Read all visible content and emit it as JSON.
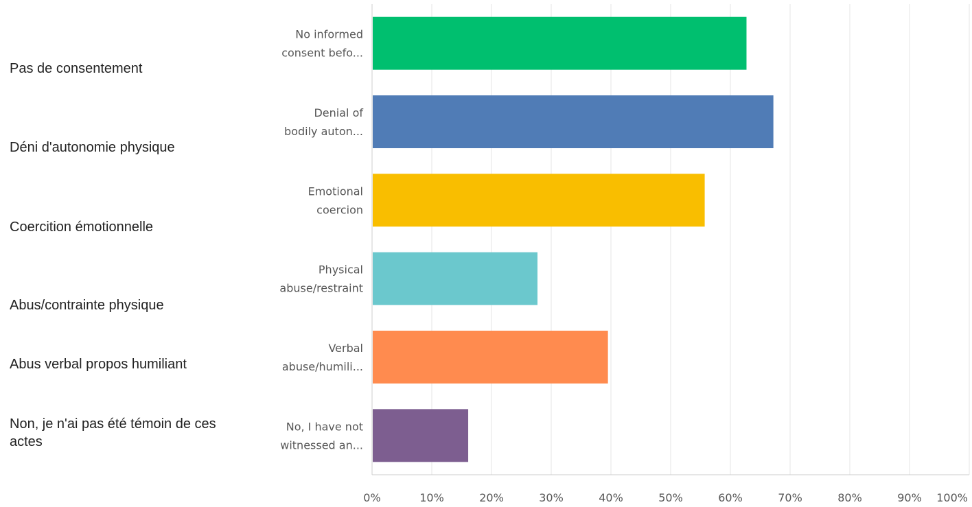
{
  "side_labels": [
    "Pas de consentement",
    "Déni d'autonomie physique",
    "Coercition émotionnelle",
    "Abus/contrainte physique",
    "Abus verbal propos humiliant",
    "Non, je n'ai pas été témoin de ces actes"
  ],
  "chart_data": {
    "type": "bar",
    "orientation": "horizontal",
    "categories": [
      [
        "No informed",
        "consent befo..."
      ],
      [
        "Denial of",
        "bodily auton..."
      ],
      [
        "Emotional",
        "coercion"
      ],
      [
        "Physical",
        "abuse/restraint"
      ],
      [
        "Verbal",
        "abuse/humili..."
      ],
      [
        "No, I have not",
        "witnessed an..."
      ]
    ],
    "values": [
      62.7,
      67.2,
      55.7,
      27.7,
      39.5,
      16.1
    ],
    "colors": [
      "#00bf6f",
      "#507cb6",
      "#f9be00",
      "#6bc8cd",
      "#ff8b4f",
      "#7d5e90"
    ],
    "xlim": [
      0,
      100
    ],
    "xticks": [
      0,
      10,
      20,
      30,
      40,
      50,
      60,
      70,
      80,
      90,
      100
    ],
    "xtick_labels": [
      "0%",
      "10%",
      "20%",
      "30%",
      "40%",
      "50%",
      "60%",
      "70%",
      "80%",
      "90%",
      "100%"
    ],
    "grid": true,
    "grid_color": "#e6e6e6",
    "axis_color": "#cccccc"
  }
}
